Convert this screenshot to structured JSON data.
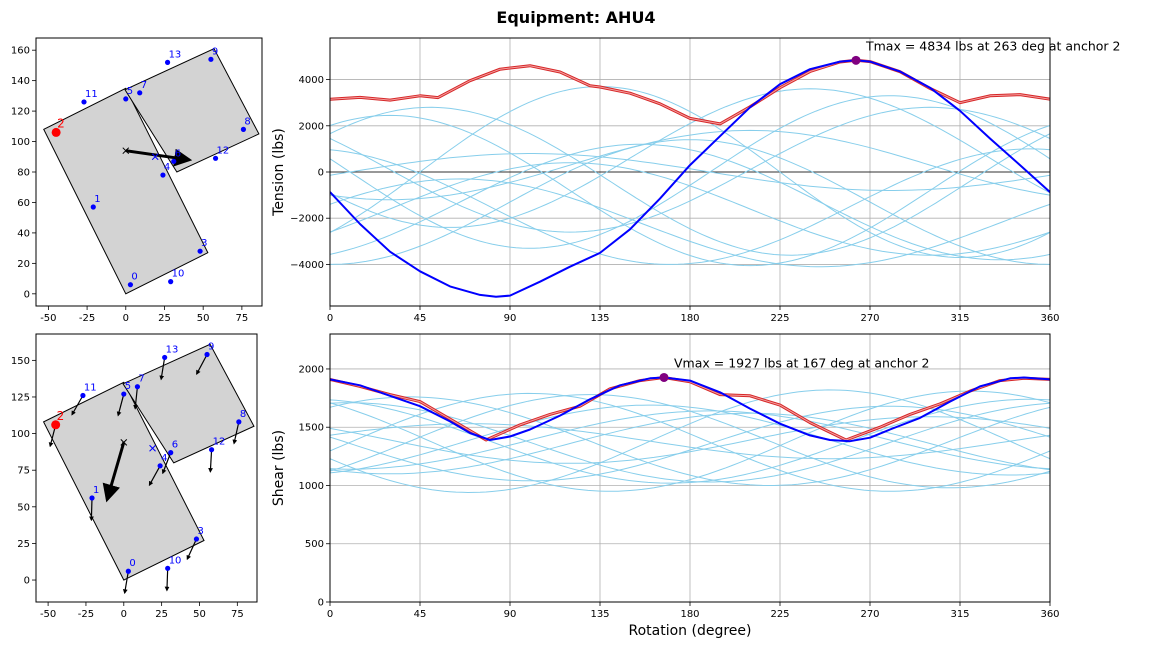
{
  "figure_title": "Equipment: AHU4",
  "colors": {
    "anchor": "#0000ff",
    "critical_anchor": "#ff0000",
    "envelope": "#d62728",
    "critical_curve": "#0000ff",
    "other_curves": "#87ceeb",
    "max_marker": "#800080",
    "plate_fill": "#d3d3d3",
    "grid": "#b0b0b0"
  },
  "chart_data": [
    {
      "id": "plan_top",
      "type": "scatter",
      "description_label": "anchor plan (tension)",
      "xlim": [
        -58,
        88
      ],
      "ylim": [
        -8,
        168
      ],
      "xticks": [
        -50,
        -25,
        0,
        25,
        50,
        75
      ],
      "yticks": [
        0,
        20,
        40,
        60,
        80,
        100,
        120,
        140,
        160
      ],
      "plates": [
        [
          [
            0,
            0
          ],
          [
            -53,
            108
          ],
          [
            0,
            135
          ],
          [
            53,
            27
          ]
        ],
        [
          [
            -0.5,
            134
          ],
          [
            57,
            161
          ],
          [
            86,
            105
          ],
          [
            33,
            80
          ]
        ]
      ],
      "anchors": [
        {
          "label": "0",
          "x": 3,
          "y": 6
        },
        {
          "label": "1",
          "x": -21,
          "y": 57
        },
        {
          "label": "2",
          "x": -45,
          "y": 106,
          "critical": true
        },
        {
          "label": "3",
          "x": 48,
          "y": 28
        },
        {
          "label": "4",
          "x": 24,
          "y": 78
        },
        {
          "label": "5",
          "x": 0,
          "y": 128
        },
        {
          "label": "6",
          "x": 31,
          "y": 87
        },
        {
          "label": "7",
          "x": 9,
          "y": 132
        },
        {
          "label": "8",
          "x": 76,
          "y": 108
        },
        {
          "label": "9",
          "x": 55,
          "y": 154
        },
        {
          "label": "10",
          "x": 29,
          "y": 8
        },
        {
          "label": "11",
          "x": -27,
          "y": 126
        },
        {
          "label": "12",
          "x": 58,
          "y": 89
        },
        {
          "label": "13",
          "x": 27,
          "y": 152
        }
      ],
      "cg_markers": [
        {
          "x": 0,
          "y": 94
        },
        {
          "x": 19,
          "y": 90
        }
      ],
      "force_arrow": {
        "from": [
          0,
          94
        ],
        "to": [
          41,
          88
        ]
      }
    },
    {
      "id": "tension",
      "type": "line",
      "title": "",
      "xlabel": "",
      "ylabel": "Tension (lbs)",
      "xlim": [
        0,
        360
      ],
      "ylim": [
        -5800,
        5800
      ],
      "xticks": [
        0,
        45,
        90,
        135,
        180,
        225,
        270,
        315,
        360
      ],
      "yticks": [
        -4000,
        -2000,
        0,
        2000,
        4000
      ],
      "annotation": "Tmax = 4834 lbs at 263 deg at anchor 2",
      "max_point": {
        "x": 263,
        "y": 4834
      },
      "envelope": {
        "x": [
          0,
          15,
          30,
          45,
          54,
          70,
          85,
          100,
          115,
          130,
          135,
          150,
          165,
          180,
          195,
          210,
          225,
          240,
          255,
          263,
          270,
          285,
          300,
          315,
          330,
          345,
          360
        ],
        "y": [
          3150,
          3230,
          3110,
          3300,
          3220,
          3950,
          4450,
          4600,
          4330,
          3730,
          3680,
          3410,
          2950,
          2320,
          2080,
          2820,
          3650,
          4350,
          4760,
          4834,
          4780,
          4340,
          3620,
          3000,
          3300,
          3350,
          3150
        ]
      },
      "critical_series": {
        "name": "anchor 2",
        "x": [
          0,
          15,
          30,
          45,
          60,
          75,
          83,
          90,
          105,
          120,
          135,
          150,
          165,
          180,
          195,
          210,
          225,
          240,
          255,
          263,
          270,
          285,
          300,
          315,
          330,
          345,
          360
        ],
        "y": [
          -870,
          -2250,
          -3450,
          -4300,
          -4950,
          -5320,
          -5400,
          -5350,
          -4750,
          -4100,
          -3500,
          -2480,
          -1150,
          300,
          1550,
          2800,
          3800,
          4450,
          4780,
          4834,
          4780,
          4350,
          3650,
          2650,
          1450,
          300,
          -870
        ]
      },
      "other_series": [
        {
          "name": "a",
          "amp": 2700,
          "phase": 300,
          "offset": 100
        },
        {
          "name": "b",
          "amp": 3300,
          "phase": 280,
          "offset": 0
        },
        {
          "name": "c",
          "amp": 2500,
          "phase": 155,
          "offset": -1300
        },
        {
          "name": "d",
          "amp": 2000,
          "phase": 120,
          "offset": -1600
        },
        {
          "name": "e",
          "amp": 1900,
          "phase": 65,
          "offset": -2200
        },
        {
          "name": "f",
          "amp": 3000,
          "phase": 240,
          "offset": 600
        },
        {
          "name": "g",
          "amp": 3700,
          "phase": 135,
          "offset": 0
        },
        {
          "name": "h",
          "amp": 1500,
          "phase": 210,
          "offset": 300
        },
        {
          "name": "i",
          "amp": 3250,
          "phase": 30,
          "offset": -800
        },
        {
          "name": "j",
          "amp": 3200,
          "phase": 50,
          "offset": -400
        },
        {
          "name": "k",
          "amp": 2700,
          "phase": 180,
          "offset": -1300
        },
        {
          "name": "l",
          "amp": 800,
          "phase": 100,
          "offset": 0
        },
        {
          "name": "m",
          "amp": 2500,
          "phase": 350,
          "offset": -1500
        }
      ]
    },
    {
      "id": "plan_bottom",
      "type": "scatter",
      "description_label": "anchor plan (shear)",
      "xlim": [
        -58,
        88
      ],
      "ylim": [
        -15,
        168
      ],
      "xticks": [
        -50,
        -25,
        0,
        25,
        50,
        75
      ],
      "yticks": [
        0,
        25,
        50,
        75,
        100,
        125,
        150
      ],
      "plates": [
        [
          [
            0,
            0
          ],
          [
            -53,
            108
          ],
          [
            0,
            135
          ],
          [
            53,
            27
          ]
        ],
        [
          [
            -0.5,
            134
          ],
          [
            57,
            161
          ],
          [
            86,
            105
          ],
          [
            33,
            80
          ]
        ]
      ],
      "anchors": [
        {
          "label": "0",
          "x": 3,
          "y": 6
        },
        {
          "label": "1",
          "x": -21,
          "y": 56
        },
        {
          "label": "2",
          "x": -45,
          "y": 106,
          "critical": true
        },
        {
          "label": "3",
          "x": 48,
          "y": 28
        },
        {
          "label": "4",
          "x": 24,
          "y": 78
        },
        {
          "label": "5",
          "x": 0,
          "y": 127
        },
        {
          "label": "6",
          "x": 31,
          "y": 87
        },
        {
          "label": "7",
          "x": 9,
          "y": 132
        },
        {
          "label": "8",
          "x": 76,
          "y": 108
        },
        {
          "label": "9",
          "x": 55,
          "y": 154
        },
        {
          "label": "10",
          "x": 29,
          "y": 8
        },
        {
          "label": "11",
          "x": -27,
          "y": 126
        },
        {
          "label": "12",
          "x": 58,
          "y": 89
        },
        {
          "label": "13",
          "x": 27,
          "y": 152
        }
      ],
      "cg_markers": [
        {
          "x": 0,
          "y": 94
        },
        {
          "x": 19,
          "y": 90
        }
      ],
      "force_arrow": {
        "from": [
          0,
          94
        ],
        "to": [
          -11,
          55
        ]
      }
    },
    {
      "id": "shear",
      "type": "line",
      "title": "",
      "xlabel": "Rotation (degree)",
      "ylabel": "Shear (lbs)",
      "xlim": [
        0,
        360
      ],
      "ylim": [
        0,
        2300
      ],
      "xticks": [
        0,
        45,
        90,
        135,
        180,
        225,
        270,
        315,
        360
      ],
      "yticks": [
        0,
        500,
        1000,
        1500,
        2000
      ],
      "annotation": "Vmax = 1927 lbs at 167 deg at anchor 2",
      "max_point": {
        "x": 167,
        "y": 1927
      },
      "envelope": {
        "x": [
          0,
          15,
          30,
          45,
          60,
          78,
          95,
          110,
          125,
          140,
          155,
          167,
          180,
          195,
          210,
          225,
          240,
          258,
          275,
          290,
          305,
          320,
          335,
          347,
          360
        ],
        "y": [
          1910,
          1850,
          1780,
          1720,
          1570,
          1390,
          1520,
          1610,
          1680,
          1830,
          1900,
          1927,
          1890,
          1780,
          1770,
          1690,
          1540,
          1390,
          1500,
          1610,
          1700,
          1810,
          1900,
          1920,
          1910
        ]
      },
      "critical_series": {
        "name": "anchor 2",
        "x": [
          0,
          15,
          30,
          45,
          60,
          70,
          80,
          90,
          100,
          115,
          130,
          145,
          160,
          167,
          180,
          195,
          210,
          225,
          240,
          250,
          260,
          270,
          280,
          295,
          310,
          325,
          340,
          347,
          360
        ],
        "y": [
          1910,
          1860,
          1770,
          1680,
          1550,
          1450,
          1390,
          1420,
          1480,
          1600,
          1740,
          1860,
          1920,
          1927,
          1900,
          1800,
          1660,
          1530,
          1430,
          1390,
          1380,
          1410,
          1480,
          1580,
          1720,
          1850,
          1920,
          1927,
          1910
        ]
      },
      "other_series": [
        {
          "name": "a",
          "amp": 380,
          "phase": 40,
          "offset": 1380
        },
        {
          "name": "b",
          "amp": 420,
          "phase": 100,
          "offset": 1370
        },
        {
          "name": "c",
          "amp": 300,
          "phase": 160,
          "offset": 1390
        },
        {
          "name": "d",
          "amp": 260,
          "phase": 210,
          "offset": 1360
        },
        {
          "name": "e",
          "amp": 440,
          "phase": 250,
          "offset": 1380
        },
        {
          "name": "f",
          "amp": 200,
          "phase": 300,
          "offset": 1390
        },
        {
          "name": "g",
          "amp": 340,
          "phase": 10,
          "offset": 1370
        },
        {
          "name": "h",
          "amp": 430,
          "phase": 320,
          "offset": 1380
        },
        {
          "name": "i",
          "amp": 150,
          "phase": 70,
          "offset": 1380
        },
        {
          "name": "j",
          "amp": 400,
          "phase": 130,
          "offset": 1380
        },
        {
          "name": "k",
          "amp": 320,
          "phase": 280,
          "offset": 1360
        },
        {
          "name": "l",
          "amp": 250,
          "phase": 190,
          "offset": 1390
        },
        {
          "name": "m",
          "amp": 360,
          "phase": 350,
          "offset": 1380
        }
      ]
    }
  ]
}
